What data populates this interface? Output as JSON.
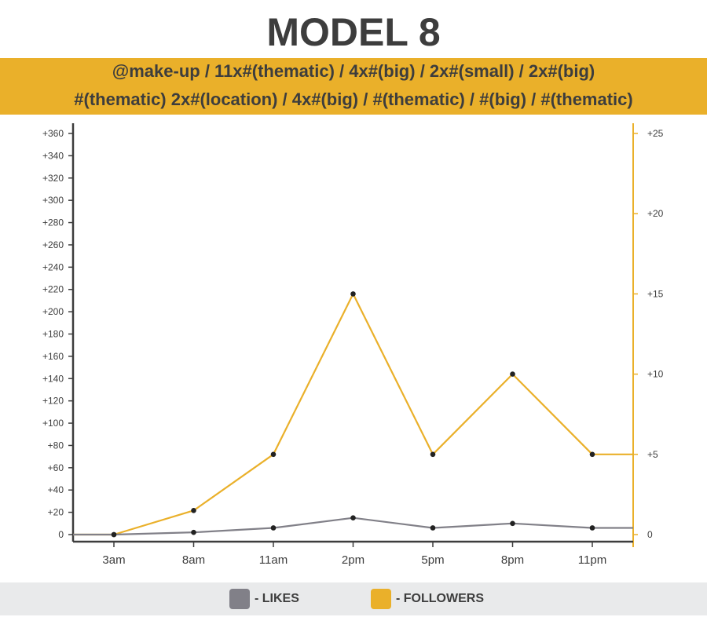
{
  "title": "MODEL 8",
  "banner": {
    "line1": "@make-up / 11x#(thematic) / 4x#(big) / 2x#(small) / 2x#(big)",
    "line2": "#(thematic) 2x#(location) / 4x#(big) / #(thematic) / #(big) / #(thematic)"
  },
  "colors": {
    "accent": "#eab02a",
    "likes": "#818088",
    "dark": "#3d3d3d",
    "legend_bg": "#e9eaeb"
  },
  "legend": {
    "likes": "- LIKES",
    "followers": "- FOLLOWERS"
  },
  "chart_data": {
    "type": "line",
    "categories": [
      "3am",
      "8am",
      "11am",
      "2pm",
      "5pm",
      "8pm",
      "11pm"
    ],
    "left_axis": {
      "ticks": [
        "0",
        "+20",
        "+40",
        "+60",
        "+80",
        "+100",
        "+120",
        "+140",
        "+160",
        "+180",
        "+200",
        "+220",
        "+240",
        "+260",
        "+280",
        "+300",
        "+320",
        "+340",
        "+360"
      ],
      "range": [
        0,
        360
      ]
    },
    "right_axis": {
      "ticks": [
        "0",
        "+5",
        "+10",
        "+15",
        "+20",
        "+25"
      ],
      "range": [
        0,
        25
      ]
    },
    "series": [
      {
        "name": "FOLLOWERS",
        "axis": "right",
        "color": "#eab02a",
        "values": [
          0,
          1.5,
          5,
          15,
          5,
          10,
          5
        ],
        "end_value": 5
      },
      {
        "name": "LIKES",
        "axis": "left",
        "color": "#818088",
        "values": [
          0,
          2,
          6,
          15,
          6,
          10,
          6
        ],
        "end_value": 6
      }
    ],
    "grid": false
  }
}
